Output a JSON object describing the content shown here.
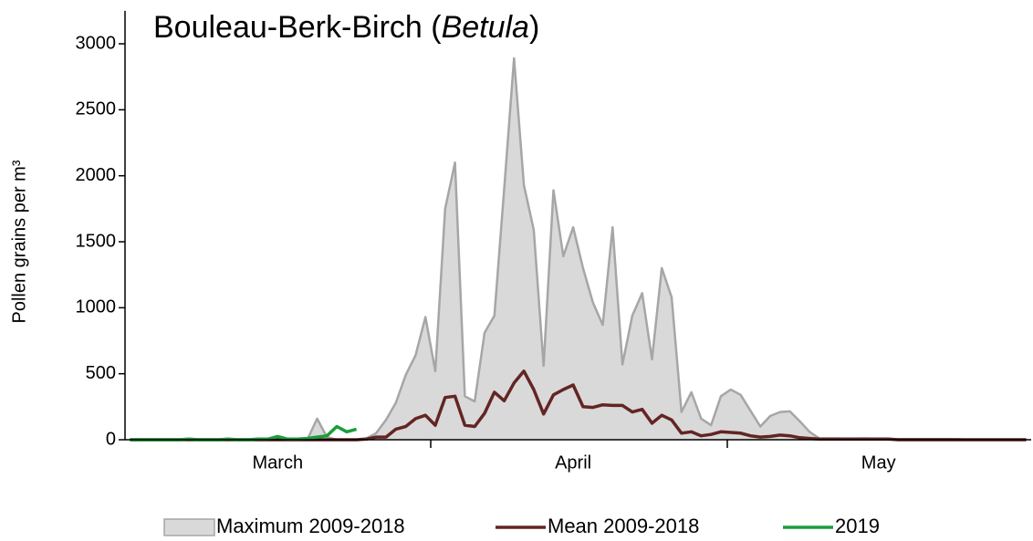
{
  "chart_data": {
    "type": "line",
    "title_parts": [
      "Bouleau-Berk-Birch (",
      "Betula",
      ")"
    ],
    "y_label": "Pollen grains per m³",
    "categories": [
      null,
      null,
      null,
      null,
      null,
      null,
      null,
      null,
      null,
      null,
      null,
      null,
      null,
      null,
      null,
      "March",
      null,
      null,
      null,
      null,
      null,
      null,
      null,
      null,
      null,
      null,
      null,
      null,
      null,
      null,
      null,
      null,
      null,
      null,
      null,
      null,
      null,
      null,
      null,
      null,
      null,
      null,
      null,
      null,
      null,
      "April",
      null,
      null,
      null,
      null,
      null,
      null,
      null,
      null,
      null,
      null,
      null,
      null,
      null,
      null,
      null,
      null,
      null,
      null,
      null,
      null,
      null,
      null,
      null,
      null,
      null,
      null,
      null,
      null,
      null,
      null,
      "May",
      null,
      null,
      null,
      null,
      null,
      null,
      null,
      null,
      null,
      null,
      null,
      null,
      null,
      null,
      null
    ],
    "ylim": [
      0,
      3250
    ],
    "yticks": [
      0,
      500,
      1000,
      1500,
      2000,
      2500,
      3000
    ],
    "legend": "bottom",
    "series": [
      {
        "name": "Maximum 2009-2018",
        "color": "#a6a6a6",
        "fill": "#d9d9d9",
        "area": true,
        "values": [
          0,
          0,
          0,
          0,
          0,
          0,
          0,
          0,
          0,
          0,
          0,
          0,
          0,
          0,
          0,
          0,
          0,
          0,
          0,
          160,
          20,
          0,
          0,
          0,
          10,
          50,
          150,
          280,
          490,
          640,
          930,
          520,
          1750,
          2100,
          330,
          290,
          810,
          940,
          1900,
          2890,
          1930,
          1590,
          560,
          1890,
          1390,
          1610,
          1300,
          1040,
          870,
          1610,
          570,
          940,
          1110,
          610,
          1300,
          1080,
          210,
          360,
          160,
          110,
          330,
          380,
          340,
          220,
          100,
          180,
          210,
          215,
          140,
          60,
          10,
          10,
          10,
          5,
          10,
          10,
          5,
          5,
          5,
          5,
          5,
          5,
          5,
          5,
          5,
          0,
          0,
          0,
          0,
          0,
          0,
          0
        ]
      },
      {
        "name": "Mean 2009-2018",
        "color": "#632523",
        "values": [
          0,
          0,
          0,
          0,
          0,
          0,
          0,
          0,
          0,
          0,
          0,
          0,
          0,
          0,
          0,
          0,
          0,
          0,
          0,
          0,
          0,
          0,
          0,
          0,
          5,
          20,
          20,
          80,
          100,
          160,
          185,
          110,
          320,
          330,
          110,
          100,
          200,
          360,
          295,
          430,
          520,
          380,
          195,
          340,
          380,
          415,
          250,
          245,
          265,
          260,
          260,
          210,
          230,
          125,
          185,
          150,
          50,
          60,
          30,
          40,
          60,
          55,
          50,
          30,
          20,
          25,
          35,
          30,
          15,
          10,
          5,
          5,
          5,
          5,
          5,
          5,
          5,
          5,
          0,
          0,
          0,
          0,
          0,
          0,
          0,
          0,
          0,
          0,
          0,
          0,
          0,
          0
        ]
      },
      {
        "name": "2019",
        "color": "#1a9e3a",
        "values": [
          0,
          0,
          0,
          0,
          0,
          0,
          5,
          0,
          0,
          0,
          5,
          0,
          0,
          5,
          5,
          25,
          5,
          5,
          10,
          20,
          30,
          100,
          60,
          80,
          null,
          null,
          null,
          null,
          null,
          null,
          null,
          null,
          null,
          null,
          null,
          null,
          null,
          null,
          null,
          null,
          null,
          null,
          null,
          null,
          null,
          null,
          null,
          null,
          null,
          null,
          null,
          null,
          null,
          null,
          null,
          null,
          null,
          null,
          null,
          null,
          null,
          null,
          null,
          null,
          null,
          null,
          null,
          null,
          null,
          null,
          null,
          null,
          null,
          null,
          null,
          null,
          null,
          null,
          null,
          null,
          null,
          null,
          null,
          null,
          null,
          null,
          null,
          null,
          null,
          null,
          null,
          null
        ]
      }
    ]
  }
}
